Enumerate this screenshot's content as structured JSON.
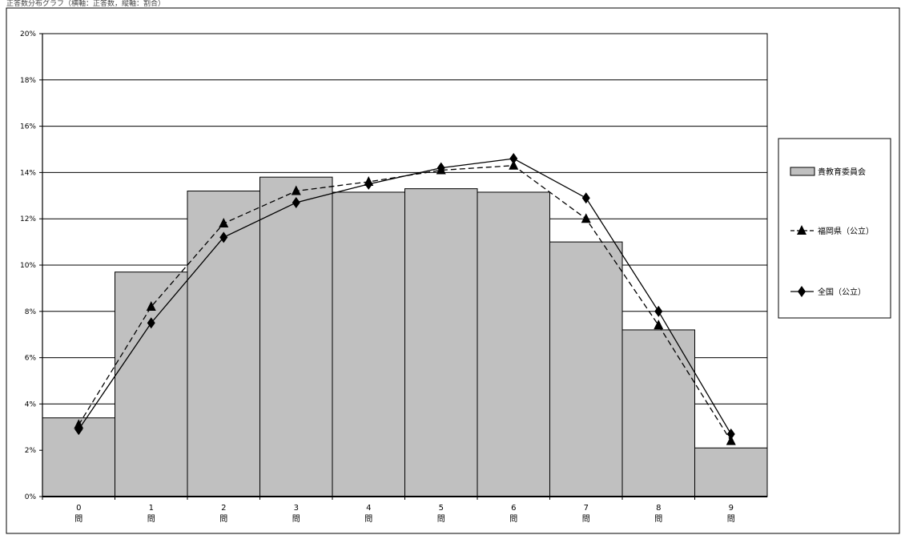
{
  "title": "正答数分布グラフ（横軸：正答数，縦軸：割合）",
  "chart_data": {
    "type": "bar",
    "categories": [
      "0",
      "1",
      "2",
      "3",
      "4",
      "5",
      "6",
      "7",
      "8",
      "9"
    ],
    "category_unit": "問",
    "series": [
      {
        "name": "貴教育委員会",
        "type": "bar",
        "values": [
          3.4,
          9.7,
          13.2,
          13.8,
          13.15,
          13.3,
          13.15,
          11.0,
          7.2,
          2.1
        ],
        "color": "#c0c0c0"
      },
      {
        "name": "福岡県（公立）",
        "type": "line",
        "values": [
          3.1,
          8.2,
          11.8,
          13.2,
          13.6,
          14.1,
          14.3,
          12.0,
          7.4,
          2.4
        ],
        "color": "#000000",
        "line_style": "dashed",
        "marker": "triangle"
      },
      {
        "name": "全国（公立）",
        "type": "line",
        "values": [
          2.9,
          7.5,
          11.2,
          12.7,
          13.5,
          14.2,
          14.6,
          12.9,
          8.0,
          2.7
        ],
        "color": "#000000",
        "line_style": "solid",
        "marker": "diamond"
      }
    ],
    "ylim": [
      0,
      20
    ],
    "yticks": [
      "0%",
      "2%",
      "4%",
      "6%",
      "8%",
      "10%",
      "12%",
      "14%",
      "16%",
      "18%",
      "20%"
    ],
    "grid": true,
    "legend_position": "right"
  }
}
